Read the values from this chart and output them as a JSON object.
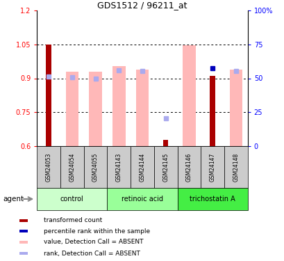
{
  "title": "GDS1512 / 96211_at",
  "samples": [
    "GSM24053",
    "GSM24054",
    "GSM24055",
    "GSM24143",
    "GSM24144",
    "GSM24145",
    "GSM24146",
    "GSM24147",
    "GSM24148"
  ],
  "groups": [
    {
      "name": "control",
      "indices": [
        0,
        1,
        2
      ],
      "color": "#ccffcc"
    },
    {
      "name": "retinoic acid",
      "indices": [
        3,
        4,
        5
      ],
      "color": "#99ff99"
    },
    {
      "name": "trichostatin A",
      "indices": [
        6,
        7,
        8
      ],
      "color": "#44ee44"
    }
  ],
  "red_bar_value": [
    1.048,
    null,
    null,
    null,
    null,
    0.627,
    null,
    0.912,
    null
  ],
  "pink_bar_top": [
    null,
    0.93,
    0.93,
    0.955,
    0.94,
    null,
    1.045,
    null,
    0.94
  ],
  "pink_bar_bottom": 0.6,
  "blue_dot_right": [
    51.5,
    50.8,
    50.0,
    55.8,
    55.5,
    20.3,
    null,
    null,
    55.5
  ],
  "blue_dot_present": [
    true,
    true,
    true,
    true,
    true,
    true,
    false,
    false,
    true
  ],
  "dark_blue_present": [
    false,
    false,
    false,
    false,
    false,
    false,
    false,
    true,
    false
  ],
  "dark_blue_right": [
    null,
    null,
    null,
    null,
    null,
    null,
    null,
    57.5,
    null
  ],
  "ylim": [
    0.6,
    1.2
  ],
  "right_ylim": [
    0,
    100
  ],
  "yticks_left": [
    0.6,
    0.75,
    0.9,
    1.05,
    1.2
  ],
  "ytick_labels_left": [
    "0.6",
    "0.75",
    "0.9",
    "1.05",
    "1.2"
  ],
  "yticks_right": [
    0,
    25,
    50,
    75,
    100
  ],
  "ytick_labels_right": [
    "0",
    "25",
    "50",
    "75",
    "100"
  ],
  "dotted_lines": [
    0.75,
    0.9,
    1.05
  ],
  "red_color": "#aa0000",
  "pink_color": "#ffb8b8",
  "blue_dot_color": "#aaaaee",
  "dark_blue_color": "#0000bb",
  "legend_items": [
    {
      "color": "#aa0000",
      "label": "transformed count"
    },
    {
      "color": "#0000bb",
      "label": "percentile rank within the sample"
    },
    {
      "color": "#ffb8b8",
      "label": "value, Detection Call = ABSENT"
    },
    {
      "color": "#aaaaee",
      "label": "rank, Detection Call = ABSENT"
    }
  ],
  "sample_box_color": "#cccccc",
  "fig_width": 4.1,
  "fig_height": 3.75,
  "dpi": 100
}
